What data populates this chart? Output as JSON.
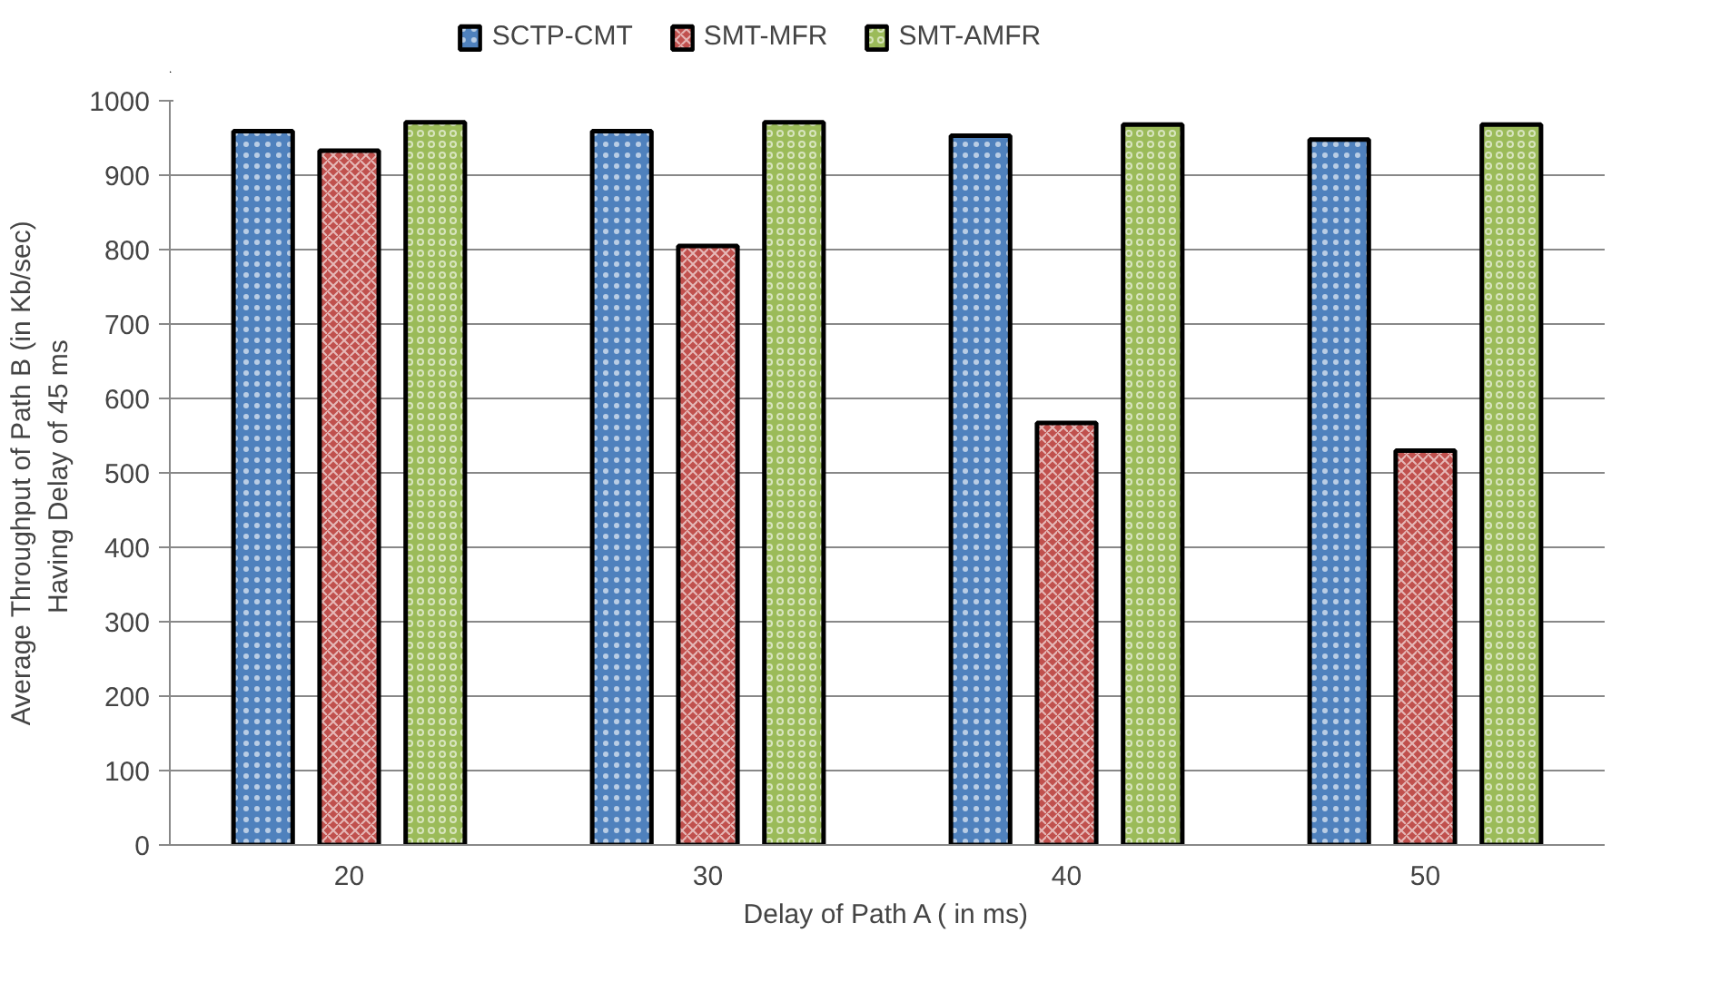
{
  "chart_data": {
    "type": "bar",
    "xlabel": "Delay of Path A ( in ms)",
    "ylabel": "Average Throughput of Path B (in Kb/sec)\nHaving  Delay of 45 ms",
    "categories": [
      "20",
      "30",
      "40",
      "50"
    ],
    "series": [
      {
        "name": "SCTP-CMT",
        "color": "#4f81bd",
        "values": [
          959,
          959,
          953,
          948
        ]
      },
      {
        "name": "SMT-MFR",
        "color": "#c0504d",
        "values": [
          933,
          805,
          567,
          530
        ]
      },
      {
        "name": "SMT-AMFR",
        "color": "#9bbb59",
        "values": [
          971,
          971,
          968,
          968
        ]
      }
    ],
    "ylim": [
      0,
      1000
    ],
    "yticks": [
      0,
      100,
      200,
      300,
      400,
      500,
      600,
      700,
      800,
      900,
      1000
    ],
    "grid": "y",
    "legend": "top"
  }
}
